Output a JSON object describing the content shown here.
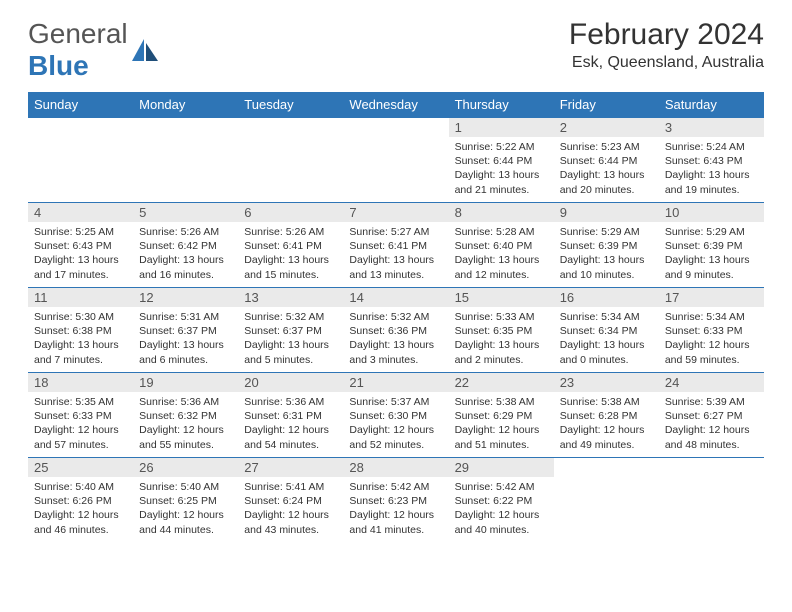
{
  "logo": {
    "word": "General",
    "accent": "Blue"
  },
  "title": "February 2024",
  "location": "Esk, Queensland, Australia",
  "colors": {
    "header_bg": "#2e75b6",
    "header_text": "#ffffff",
    "daynum_bg": "#eaeaea",
    "border": "#2e75b6",
    "text": "#333333"
  },
  "day_headers": [
    "Sunday",
    "Monday",
    "Tuesday",
    "Wednesday",
    "Thursday",
    "Friday",
    "Saturday"
  ],
  "weeks": [
    [
      null,
      null,
      null,
      null,
      {
        "n": "1",
        "sr": "5:22 AM",
        "ss": "6:44 PM",
        "dl": "13 hours and 21 minutes."
      },
      {
        "n": "2",
        "sr": "5:23 AM",
        "ss": "6:44 PM",
        "dl": "13 hours and 20 minutes."
      },
      {
        "n": "3",
        "sr": "5:24 AM",
        "ss": "6:43 PM",
        "dl": "13 hours and 19 minutes."
      }
    ],
    [
      {
        "n": "4",
        "sr": "5:25 AM",
        "ss": "6:43 PM",
        "dl": "13 hours and 17 minutes."
      },
      {
        "n": "5",
        "sr": "5:26 AM",
        "ss": "6:42 PM",
        "dl": "13 hours and 16 minutes."
      },
      {
        "n": "6",
        "sr": "5:26 AM",
        "ss": "6:41 PM",
        "dl": "13 hours and 15 minutes."
      },
      {
        "n": "7",
        "sr": "5:27 AM",
        "ss": "6:41 PM",
        "dl": "13 hours and 13 minutes."
      },
      {
        "n": "8",
        "sr": "5:28 AM",
        "ss": "6:40 PM",
        "dl": "13 hours and 12 minutes."
      },
      {
        "n": "9",
        "sr": "5:29 AM",
        "ss": "6:39 PM",
        "dl": "13 hours and 10 minutes."
      },
      {
        "n": "10",
        "sr": "5:29 AM",
        "ss": "6:39 PM",
        "dl": "13 hours and 9 minutes."
      }
    ],
    [
      {
        "n": "11",
        "sr": "5:30 AM",
        "ss": "6:38 PM",
        "dl": "13 hours and 7 minutes."
      },
      {
        "n": "12",
        "sr": "5:31 AM",
        "ss": "6:37 PM",
        "dl": "13 hours and 6 minutes."
      },
      {
        "n": "13",
        "sr": "5:32 AM",
        "ss": "6:37 PM",
        "dl": "13 hours and 5 minutes."
      },
      {
        "n": "14",
        "sr": "5:32 AM",
        "ss": "6:36 PM",
        "dl": "13 hours and 3 minutes."
      },
      {
        "n": "15",
        "sr": "5:33 AM",
        "ss": "6:35 PM",
        "dl": "13 hours and 2 minutes."
      },
      {
        "n": "16",
        "sr": "5:34 AM",
        "ss": "6:34 PM",
        "dl": "13 hours and 0 minutes."
      },
      {
        "n": "17",
        "sr": "5:34 AM",
        "ss": "6:33 PM",
        "dl": "12 hours and 59 minutes."
      }
    ],
    [
      {
        "n": "18",
        "sr": "5:35 AM",
        "ss": "6:33 PM",
        "dl": "12 hours and 57 minutes."
      },
      {
        "n": "19",
        "sr": "5:36 AM",
        "ss": "6:32 PM",
        "dl": "12 hours and 55 minutes."
      },
      {
        "n": "20",
        "sr": "5:36 AM",
        "ss": "6:31 PM",
        "dl": "12 hours and 54 minutes."
      },
      {
        "n": "21",
        "sr": "5:37 AM",
        "ss": "6:30 PM",
        "dl": "12 hours and 52 minutes."
      },
      {
        "n": "22",
        "sr": "5:38 AM",
        "ss": "6:29 PM",
        "dl": "12 hours and 51 minutes."
      },
      {
        "n": "23",
        "sr": "5:38 AM",
        "ss": "6:28 PM",
        "dl": "12 hours and 49 minutes."
      },
      {
        "n": "24",
        "sr": "5:39 AM",
        "ss": "6:27 PM",
        "dl": "12 hours and 48 minutes."
      }
    ],
    [
      {
        "n": "25",
        "sr": "5:40 AM",
        "ss": "6:26 PM",
        "dl": "12 hours and 46 minutes."
      },
      {
        "n": "26",
        "sr": "5:40 AM",
        "ss": "6:25 PM",
        "dl": "12 hours and 44 minutes."
      },
      {
        "n": "27",
        "sr": "5:41 AM",
        "ss": "6:24 PM",
        "dl": "12 hours and 43 minutes."
      },
      {
        "n": "28",
        "sr": "5:42 AM",
        "ss": "6:23 PM",
        "dl": "12 hours and 41 minutes."
      },
      {
        "n": "29",
        "sr": "5:42 AM",
        "ss": "6:22 PM",
        "dl": "12 hours and 40 minutes."
      },
      null,
      null
    ]
  ],
  "labels": {
    "sunrise": "Sunrise: ",
    "sunset": "Sunset: ",
    "daylight": "Daylight: "
  }
}
